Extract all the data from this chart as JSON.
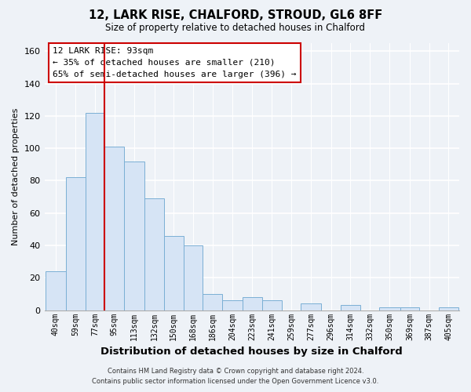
{
  "title": "12, LARK RISE, CHALFORD, STROUD, GL6 8FF",
  "subtitle": "Size of property relative to detached houses in Chalford",
  "xlabel": "Distribution of detached houses by size in Chalford",
  "ylabel": "Number of detached properties",
  "bar_color": "#d6e4f5",
  "bar_edge_color": "#7aafd4",
  "background_color": "#eef2f7",
  "plot_bg_color": "#eef2f7",
  "vline_x": 95,
  "vline_color": "#cc0000",
  "categories": [
    "40sqm",
    "59sqm",
    "77sqm",
    "95sqm",
    "113sqm",
    "132sqm",
    "150sqm",
    "168sqm",
    "186sqm",
    "204sqm",
    "223sqm",
    "241sqm",
    "259sqm",
    "277sqm",
    "296sqm",
    "314sqm",
    "332sqm",
    "350sqm",
    "369sqm",
    "387sqm",
    "405sqm"
  ],
  "bin_edges": [
    40,
    59,
    77,
    95,
    113,
    132,
    150,
    168,
    186,
    204,
    223,
    241,
    259,
    277,
    296,
    314,
    332,
    350,
    369,
    387,
    405
  ],
  "bin_widths": [
    19,
    18,
    18,
    18,
    19,
    18,
    18,
    18,
    18,
    19,
    18,
    18,
    18,
    19,
    18,
    18,
    18,
    19,
    18,
    18,
    18
  ],
  "values": [
    24,
    82,
    122,
    101,
    92,
    69,
    46,
    40,
    10,
    6,
    8,
    6,
    0,
    4,
    0,
    3,
    0,
    2,
    2,
    0,
    2
  ],
  "ylim": [
    0,
    165
  ],
  "yticks": [
    0,
    20,
    40,
    60,
    80,
    100,
    120,
    140,
    160
  ],
  "annotation_title": "12 LARK RISE: 93sqm",
  "annotation_line1": "← 35% of detached houses are smaller (210)",
  "annotation_line2": "65% of semi-detached houses are larger (396) →",
  "annotation_box_edge": "#cc0000",
  "footer_line1": "Contains HM Land Registry data © Crown copyright and database right 2024.",
  "footer_line2": "Contains public sector information licensed under the Open Government Licence v3.0."
}
